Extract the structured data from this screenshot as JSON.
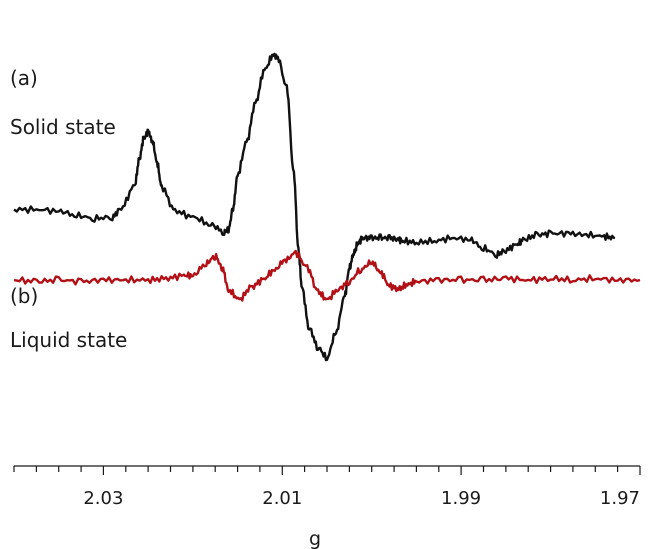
{
  "chart_data": {
    "type": "line",
    "title": "",
    "xlabel": "g",
    "ylabel": "",
    "xlim": [
      2.04,
      1.97
    ],
    "x_reversed": true,
    "grid": false,
    "legend": "none",
    "major_ticks": [
      2.03,
      2.01,
      1.99,
      1.97
    ],
    "tick_labels": [
      "2.03",
      "2.01",
      "1.99",
      "1.97"
    ],
    "minor_tick_step": 0.0025,
    "series": [
      {
        "annotation": "(a)",
        "label": "Solid state",
        "color": "#111111",
        "x": [
          2.04,
          2.0375,
          2.035,
          2.033,
          2.031,
          2.029,
          2.028,
          2.0265,
          2.026,
          2.0255,
          2.025,
          2.0245,
          2.024,
          2.0235,
          2.022,
          2.02,
          2.018,
          2.0165,
          2.016,
          2.0155,
          2.015,
          2.014,
          2.013,
          2.012,
          2.011,
          2.0105,
          2.0095,
          2.0087,
          2.0082,
          2.0078,
          2.007,
          2.006,
          2.005,
          2.004,
          2.003,
          2.0025,
          2.002,
          2.0015,
          2.001,
          2.0,
          1.999,
          1.998,
          1.997,
          1.9965,
          1.995,
          1.993,
          1.991,
          1.989,
          1.9875,
          1.986,
          1.985,
          1.9837,
          1.983,
          1.9815,
          1.98,
          1.978,
          1.976,
          1.974,
          1.9728
        ],
        "y": [
          -0.03,
          -0.03,
          -0.04,
          -0.07,
          -0.09,
          -0.08,
          -0.02,
          0.13,
          0.3,
          0.44,
          0.49,
          0.42,
          0.28,
          0.12,
          -0.04,
          -0.08,
          -0.13,
          -0.18,
          -0.16,
          -0.02,
          0.2,
          0.42,
          0.68,
          0.9,
          1.0,
          0.98,
          0.78,
          0.2,
          -0.3,
          -0.55,
          -0.82,
          -0.95,
          -1.02,
          -0.85,
          -0.6,
          -0.42,
          -0.32,
          -0.25,
          -0.22,
          -0.22,
          -0.22,
          -0.22,
          -0.23,
          -0.24,
          -0.25,
          -0.24,
          -0.22,
          -0.23,
          -0.29,
          -0.33,
          -0.3,
          -0.26,
          -0.23,
          -0.2,
          -0.19,
          -0.19,
          -0.2,
          -0.21,
          -0.22
        ]
      },
      {
        "annotation": "(b)",
        "label": "Liquid state",
        "color": "#b11116",
        "x": [
          2.04,
          2.0375,
          2.035,
          2.0325,
          2.03,
          2.0275,
          2.025,
          2.023,
          2.021,
          2.02,
          2.0185,
          2.0175,
          2.0167,
          2.016,
          2.0148,
          2.0135,
          2.0122,
          2.011,
          2.0097,
          2.0085,
          2.0072,
          2.006,
          2.005,
          2.0037,
          2.0025,
          2.0012,
          2.0,
          1.999,
          1.998,
          1.997,
          1.996,
          1.995,
          1.9925,
          1.99,
          1.9875,
          1.985,
          1.9825,
          1.98,
          1.9775,
          1.975,
          1.9725,
          1.97
        ],
        "y": [
          -0.5,
          -0.51,
          -0.5,
          -0.51,
          -0.5,
          -0.5,
          -0.5,
          -0.49,
          -0.47,
          -0.47,
          -0.39,
          -0.34,
          -0.42,
          -0.57,
          -0.63,
          -0.55,
          -0.5,
          -0.44,
          -0.37,
          -0.32,
          -0.42,
          -0.58,
          -0.63,
          -0.56,
          -0.51,
          -0.43,
          -0.38,
          -0.45,
          -0.54,
          -0.56,
          -0.53,
          -0.51,
          -0.5,
          -0.5,
          -0.5,
          -0.49,
          -0.5,
          -0.49,
          -0.5,
          -0.49,
          -0.5,
          -0.5
        ]
      }
    ]
  }
}
